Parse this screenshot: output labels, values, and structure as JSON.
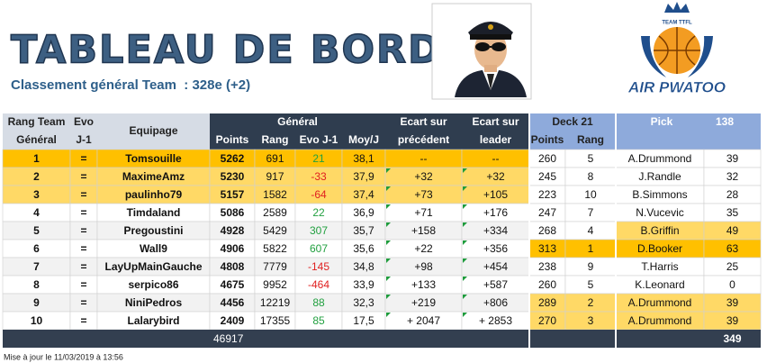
{
  "header": {
    "title": "TABLEAU DE BORD",
    "subtitle": "Classement général Team  : 328e (+2)"
  },
  "logo": {
    "team": "TEAM TTFL",
    "name": "AIR PWATOO"
  },
  "table": {
    "headers": {
      "rank": [
        "Rang Team",
        "Général"
      ],
      "evo": [
        "Evo",
        "J-1"
      ],
      "crew": "Equipage",
      "general": "Général",
      "points": "Points",
      "rang": "Rang",
      "evo_j1": "Evo J-1",
      "moy": "Moy/J",
      "ecart_prec": [
        "Ecart sur",
        "précédent"
      ],
      "ecart_leader": [
        "Ecart sur",
        "leader"
      ],
      "deck": "Deck 21",
      "deck_points": "Points",
      "deck_rang": "Rang",
      "pick": "Pick",
      "pick_number": "138"
    },
    "rows": [
      {
        "cells": [
          "1",
          "=",
          "Tomsouille",
          "5262",
          "691",
          "21",
          "38,1",
          "--",
          "--",
          "260",
          "5",
          "A.Drummond",
          "39"
        ],
        "band": "#ffc000"
      },
      {
        "cells": [
          "2",
          "=",
          "MaximeAmz",
          "5230",
          "917",
          "-33",
          "37,9",
          "+32",
          "+32",
          "245",
          "8",
          "J.Randle",
          "32"
        ],
        "band": "#ffd966"
      },
      {
        "cells": [
          "3",
          "=",
          "paulinho79",
          "5157",
          "1582",
          "-64",
          "37,4",
          "+73",
          "+105",
          "223",
          "10",
          "B.Simmons",
          "28"
        ],
        "band": "#ffd966"
      },
      {
        "cells": [
          "4",
          "=",
          "Timdaland",
          "5086",
          "2589",
          "22",
          "36,9",
          "+71",
          "+176",
          "247",
          "7",
          "N.Vucevic",
          "35"
        ]
      },
      {
        "cells": [
          "5",
          "=",
          "Pregoustini",
          "4928",
          "5429",
          "307",
          "35,7",
          "+158",
          "+334",
          "268",
          "4",
          "B.Griffin",
          "49"
        ],
        "pick": "#ffd966"
      },
      {
        "cells": [
          "6",
          "=",
          "Wall9",
          "4906",
          "5822",
          "607",
          "35,6",
          "+22",
          "+356",
          "313",
          "1",
          "D.Booker",
          "63"
        ],
        "deck": "#ffc000",
        "pick": "#ffc000"
      },
      {
        "cells": [
          "7",
          "=",
          "LayUpMainGauche",
          "4808",
          "7779",
          "-145",
          "34,8",
          "+98",
          "+454",
          "238",
          "9",
          "T.Harris",
          "25"
        ]
      },
      {
        "cells": [
          "8",
          "=",
          "serpico86",
          "4675",
          "9952",
          "-464",
          "33,9",
          "+133",
          "+587",
          "260",
          "5",
          "K.Leonard",
          "0"
        ]
      },
      {
        "cells": [
          "9",
          "=",
          "NiniPedros",
          "4456",
          "12219",
          "88",
          "32,3",
          "+219",
          "+806",
          "289",
          "2",
          "A.Drummond",
          "39"
        ],
        "deck": "#ffd966",
        "pick": "#ffd966"
      },
      {
        "cells": [
          "10",
          "=",
          "Lalarybird",
          "2409",
          "17355",
          "85",
          "17,5",
          "+ 2047",
          "+ 2853",
          "270",
          "3",
          "A.Drummond",
          "39"
        ],
        "deck": "#ffd966",
        "pick": "#ffd966"
      }
    ],
    "footer": {
      "points_total": "46917",
      "pick_total": "349"
    }
  },
  "updated": "Mise à jour le 11/03/2019 à 13:56"
}
